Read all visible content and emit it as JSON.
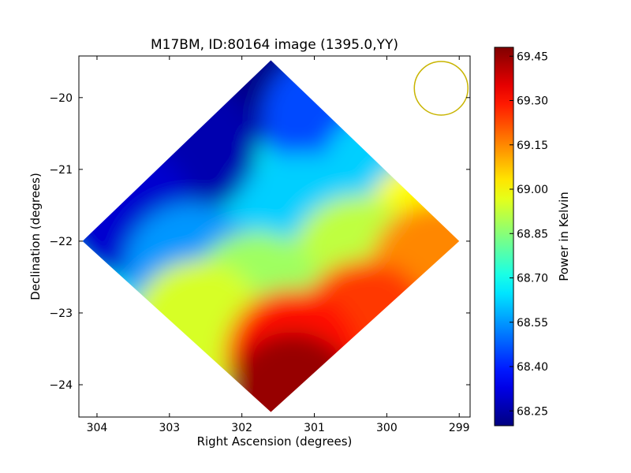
{
  "chart_data": {
    "type": "heatmap",
    "title": "M17BM, ID:80164 image (1395.0,YY)",
    "xlabel": "Right Ascension (degrees)",
    "ylabel": "Declination (degrees)",
    "x_ticks": [
      "304",
      "303",
      "302",
      "301",
      "300",
      "299"
    ],
    "y_ticks": [
      "−20",
      "−21",
      "−22",
      "−23",
      "−24"
    ],
    "xlim": [
      304.25,
      298.85
    ],
    "ylim": [
      -24.45,
      -19.42
    ],
    "x_inverted": true,
    "colorbar": {
      "label": "Power in Kelvin",
      "ticks": [
        "69.45",
        "69.30",
        "69.15",
        "69.00",
        "68.85",
        "68.70",
        "68.55",
        "68.40",
        "68.25"
      ],
      "range": [
        68.2,
        69.48
      ],
      "colormap": "jet"
    },
    "footprint_corners_deg": {
      "top": [
        301.6,
        -19.48
      ],
      "right": [
        299.0,
        -22.0
      ],
      "bottom": [
        301.6,
        -24.38
      ],
      "left": [
        304.2,
        -22.0
      ]
    },
    "value_field": [
      {
        "ra": 301.6,
        "dec": -19.7,
        "value": 68.21
      },
      {
        "ra": 302.7,
        "dec": -20.7,
        "value": 68.26
      },
      {
        "ra": 303.6,
        "dec": -21.6,
        "value": 68.3
      },
      {
        "ra": 300.8,
        "dec": -20.3,
        "value": 68.45
      },
      {
        "ra": 300.0,
        "dec": -21.1,
        "value": 68.62
      },
      {
        "ra": 301.2,
        "dec": -21.7,
        "value": 68.62
      },
      {
        "ra": 302.7,
        "dec": -22.4,
        "value": 68.55
      },
      {
        "ra": 299.4,
        "dec": -21.8,
        "value": 69.0
      },
      {
        "ra": 300.4,
        "dec": -22.3,
        "value": 68.92
      },
      {
        "ra": 301.8,
        "dec": -22.8,
        "value": 68.88
      },
      {
        "ra": 302.6,
        "dec": -23.2,
        "value": 68.95
      },
      {
        "ra": 299.3,
        "dec": -22.4,
        "value": 69.15
      },
      {
        "ra": 300.3,
        "dec": -23.2,
        "value": 69.25
      },
      {
        "ra": 301.3,
        "dec": -23.6,
        "value": 69.3
      },
      {
        "ra": 301.3,
        "dec": -24.2,
        "value": 69.45
      }
    ],
    "beam_circle": {
      "ra": 299.25,
      "dec": -19.87,
      "radius_deg": 0.37
    },
    "beam_color": "#c8b400"
  }
}
